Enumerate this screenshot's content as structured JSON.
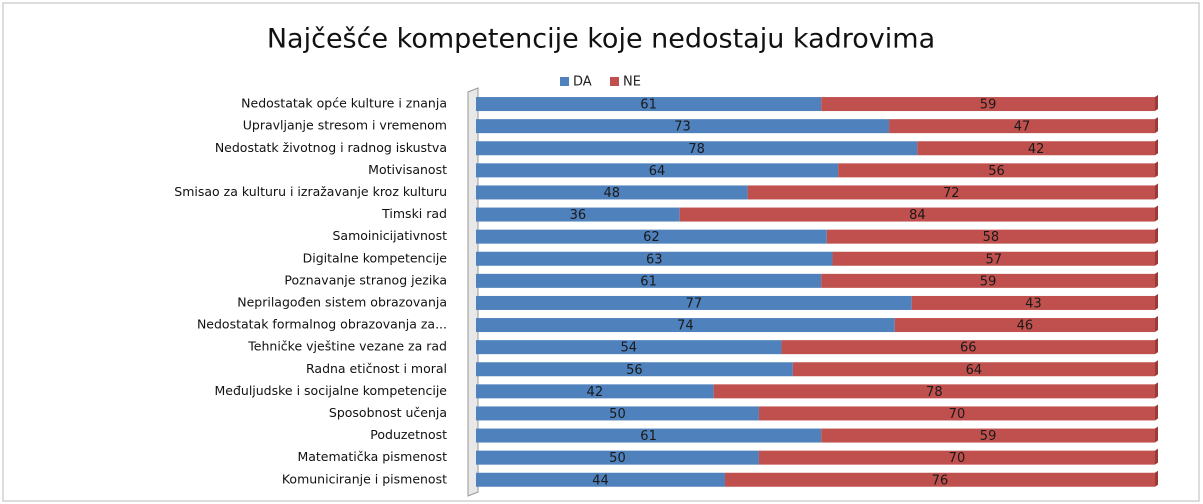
{
  "chart_data": {
    "type": "stacked_bar_horizontal",
    "title": "Najčešće kompetencije koje nedostaju kadrovima",
    "categories": [
      "Nedostatak opće kulture i znanja",
      "Upravljanje stresom i vremenom",
      "Nedostatk životnog i radnog iskustva",
      "Motivisanost",
      "Smisao za kulturu i izražavanje kroz kulturu",
      "Timski rad",
      "Samoinicijativnost",
      "Digitalne kompetencije",
      "Poznavanje stranog jezika",
      "Neprilagođen sistem obrazovanja",
      "Nedostatak formalnog obrazovanja za...",
      "Tehničke vještine vezane za rad",
      "Radna etičnost i moral",
      "Međuljudske i socijalne kompetencije",
      "Sposobnost učenja",
      "Poduzetnost",
      "Matematička pismenost",
      "Komuniciranje i pismenost"
    ],
    "series": [
      {
        "name": "DA",
        "color": "#4f81bd",
        "values": [
          61,
          73,
          78,
          64,
          48,
          36,
          62,
          63,
          61,
          77,
          74,
          54,
          56,
          42,
          50,
          61,
          50,
          44
        ]
      },
      {
        "name": "NE",
        "color": "#c0504d",
        "values": [
          59,
          47,
          42,
          56,
          72,
          84,
          58,
          57,
          59,
          43,
          46,
          66,
          64,
          78,
          70,
          59,
          70,
          76
        ]
      }
    ],
    "legend": "top"
  }
}
